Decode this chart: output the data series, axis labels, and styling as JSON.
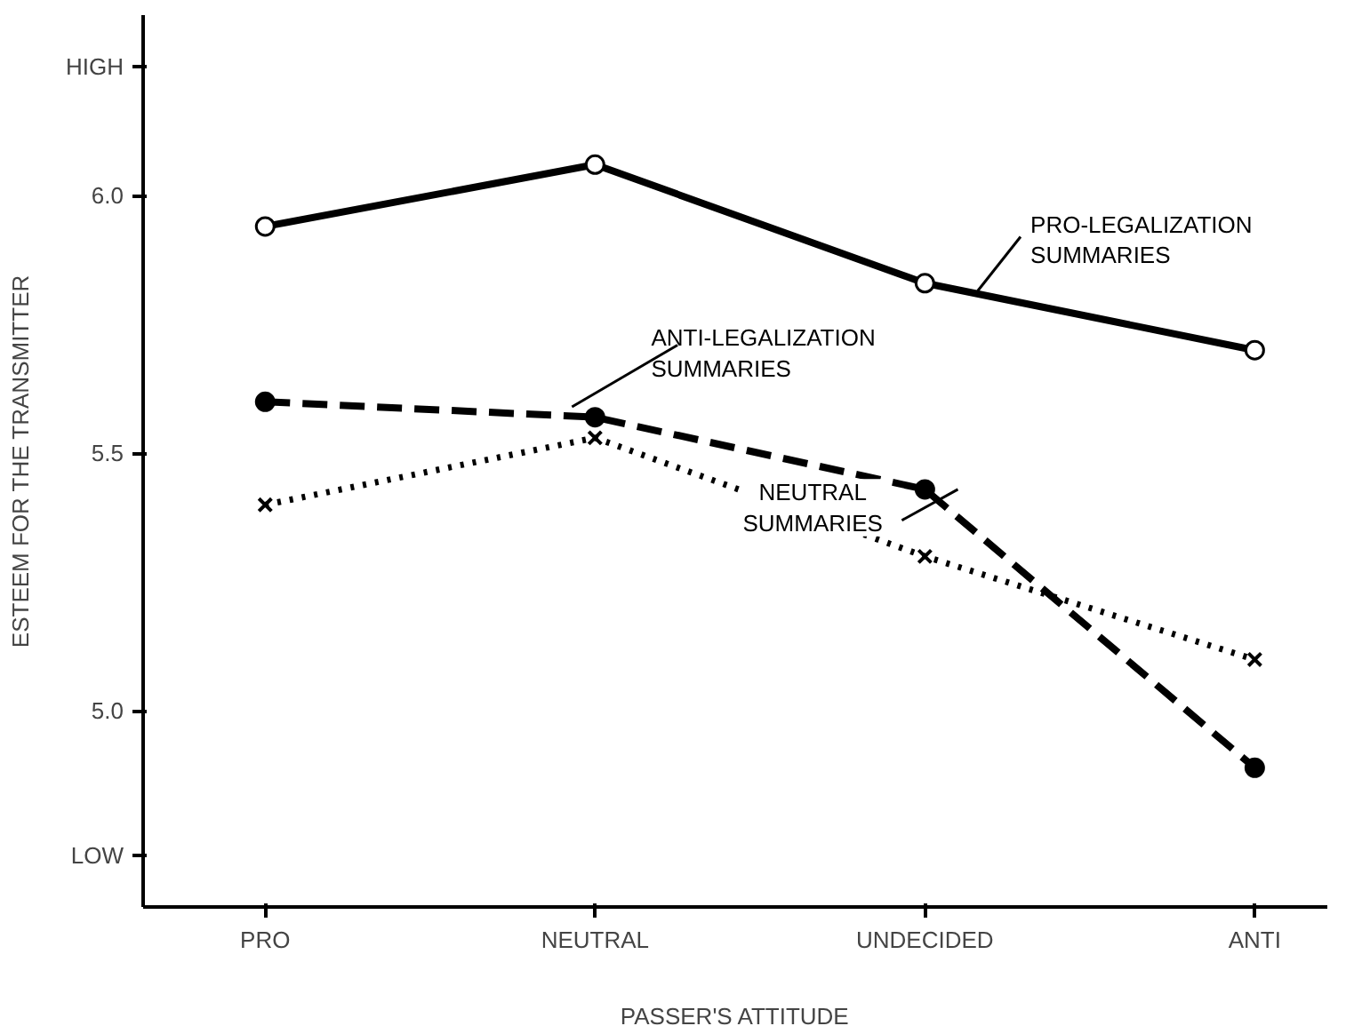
{
  "chart_data": {
    "type": "line",
    "xlabel": "PASSER'S ATTITUDE",
    "ylabel": "ESTEEM FOR THE TRANSMITTER",
    "categories": [
      "PRO",
      "NEUTRAL",
      "UNDECIDED",
      "ANTI"
    ],
    "ylim": [
      4.62,
      6.35
    ],
    "yticks": [
      {
        "value": 4.72,
        "label": "LOW"
      },
      {
        "value": 5.0,
        "label": "5.0"
      },
      5.5,
      {
        "value": 6.0,
        "label": "6.0"
      },
      {
        "value": 6.25,
        "label": "HIGH"
      }
    ],
    "grid": false,
    "series": [
      {
        "name": "PRO-LEGALIZATION SUMMARIES",
        "color": "#000000",
        "values": [
          5.94,
          6.06,
          5.83,
          5.7
        ],
        "line_style": "solid",
        "marker": "circle"
      },
      {
        "name": "ANTI-LEGALIZATION SUMMARIES",
        "color": "#000000",
        "values": [
          5.6,
          5.57,
          5.43,
          4.89
        ],
        "line_style": "dashed",
        "marker": "circle"
      },
      {
        "name": "NEUTRAL SUMMARIES",
        "color": "#000000",
        "values": [
          5.4,
          5.53,
          5.3,
          5.1
        ],
        "line_style": "dotted",
        "marker": "cross"
      }
    ]
  }
}
